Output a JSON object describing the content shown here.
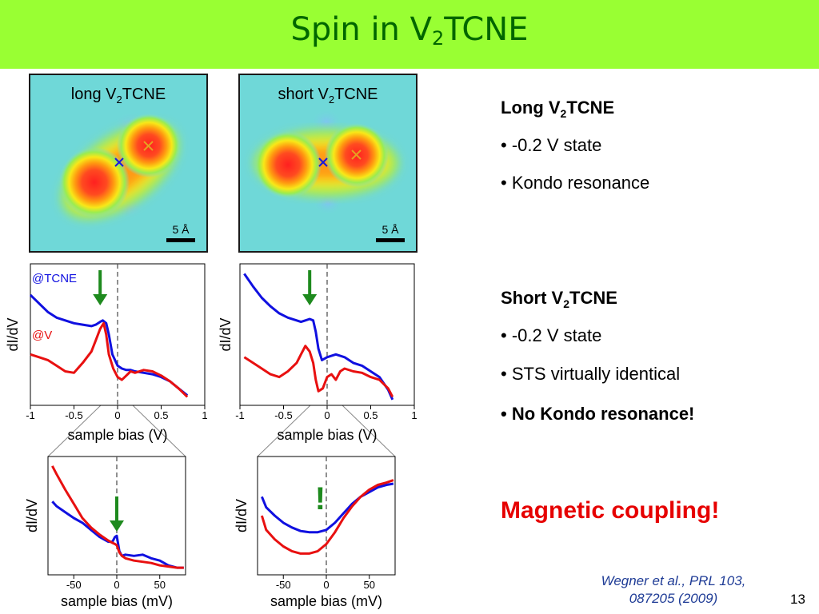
{
  "slide": {
    "title_prefix": "Spin in V",
    "title_sub": "2",
    "title_suffix": "TCNE",
    "page_number": "13"
  },
  "images": [
    {
      "title_prefix": "long V",
      "title_sub": "2",
      "title_suffix": "TCNE",
      "scale_label": "5 Å"
    },
    {
      "title_prefix": "short V",
      "title_sub": "2",
      "title_suffix": "TCNE",
      "scale_label": "5 Å"
    }
  ],
  "right_text": {
    "long": {
      "heading_prefix": "Long V",
      "heading_sub": "2",
      "heading_suffix": "TCNE",
      "bullets": [
        "• -0.2 V state",
        "• Kondo resonance"
      ]
    },
    "short": {
      "heading_prefix": "Short V",
      "heading_sub": "2",
      "heading_suffix": "TCNE",
      "bullets": [
        "• -0.2 V state",
        "• STS virtually identical",
        "• No Kondo resonance!"
      ]
    },
    "conclusion": "Magnetic coupling!",
    "reference_line1": "Wegner et al., PRL 103,",
    "reference_line2": "087205 (2009)"
  },
  "colors": {
    "title_bar": "#99ff33",
    "title_text": "#006600",
    "series_tcne": "#1010e0",
    "series_v": "#e81010",
    "arrow": "#1e8a1e",
    "conclusion": "#e60000",
    "reference": "#1f3c96"
  },
  "chart_data": [
    {
      "type": "line",
      "ylabel": "dI/dV",
      "xlabel": "sample bias (V)",
      "xlim": [
        -1,
        1
      ],
      "ylim": [
        0,
        1
      ],
      "xticks": [
        "-1",
        "-0.5",
        "0",
        "0.5",
        "1"
      ],
      "xtick_values": [
        -1,
        -0.5,
        0,
        0.5,
        1
      ],
      "series": [
        {
          "name": "@TCNE",
          "color": "#1010e0",
          "x": [
            -1,
            -0.9,
            -0.8,
            -0.7,
            -0.6,
            -0.5,
            -0.4,
            -0.3,
            -0.25,
            -0.2,
            -0.17,
            -0.13,
            -0.1,
            -0.06,
            0,
            0.05,
            0.1,
            0.15,
            0.2,
            0.3,
            0.4,
            0.5,
            0.6,
            0.7,
            0.8
          ],
          "y": [
            0.78,
            0.72,
            0.66,
            0.62,
            0.6,
            0.58,
            0.57,
            0.56,
            0.57,
            0.59,
            0.6,
            0.58,
            0.5,
            0.36,
            0.28,
            0.26,
            0.25,
            0.25,
            0.24,
            0.23,
            0.22,
            0.2,
            0.17,
            0.12,
            0.07
          ]
        },
        {
          "name": "@V",
          "color": "#e81010",
          "x": [
            -1,
            -0.9,
            -0.8,
            -0.7,
            -0.6,
            -0.5,
            -0.4,
            -0.3,
            -0.25,
            -0.2,
            -0.16,
            -0.13,
            -0.1,
            -0.05,
            0,
            0.05,
            0.1,
            0.15,
            0.2,
            0.3,
            0.4,
            0.5,
            0.6,
            0.7,
            0.8
          ],
          "y": [
            0.36,
            0.34,
            0.32,
            0.28,
            0.24,
            0.23,
            0.3,
            0.38,
            0.46,
            0.54,
            0.58,
            0.5,
            0.36,
            0.26,
            0.2,
            0.18,
            0.21,
            0.24,
            0.23,
            0.25,
            0.24,
            0.21,
            0.17,
            0.12,
            0.06
          ]
        }
      ],
      "annotations": [
        "@TCNE",
        "@V"
      ],
      "arrow_x": -0.2,
      "dashed_x": 0
    },
    {
      "type": "line",
      "ylabel": "dI/dV",
      "xlabel": "sample bias (V)",
      "xlim": [
        -1,
        1
      ],
      "ylim": [
        0,
        1
      ],
      "xticks": [
        "-1",
        "-0.5",
        "0",
        "0.5",
        "1"
      ],
      "xtick_values": [
        -1,
        -0.5,
        0,
        0.5,
        1
      ],
      "series": [
        {
          "name": "",
          "color": "#1010e0",
          "x": [
            -0.95,
            -0.85,
            -0.75,
            -0.65,
            -0.55,
            -0.45,
            -0.35,
            -0.3,
            -0.25,
            -0.2,
            -0.16,
            -0.13,
            -0.1,
            -0.06,
            0,
            0.05,
            0.1,
            0.15,
            0.2,
            0.3,
            0.4,
            0.5,
            0.6,
            0.7,
            0.75
          ],
          "y": [
            0.93,
            0.84,
            0.76,
            0.7,
            0.65,
            0.62,
            0.6,
            0.59,
            0.6,
            0.61,
            0.6,
            0.52,
            0.4,
            0.32,
            0.34,
            0.35,
            0.36,
            0.35,
            0.34,
            0.3,
            0.28,
            0.24,
            0.2,
            0.11,
            0.04
          ]
        },
        {
          "name": "",
          "color": "#e81010",
          "x": [
            -0.95,
            -0.85,
            -0.75,
            -0.65,
            -0.55,
            -0.45,
            -0.35,
            -0.3,
            -0.25,
            -0.2,
            -0.16,
            -0.13,
            -0.1,
            -0.05,
            0,
            0.05,
            0.1,
            0.15,
            0.2,
            0.3,
            0.4,
            0.5,
            0.6,
            0.7,
            0.75
          ],
          "y": [
            0.34,
            0.3,
            0.26,
            0.22,
            0.2,
            0.24,
            0.3,
            0.36,
            0.42,
            0.38,
            0.3,
            0.18,
            0.1,
            0.12,
            0.2,
            0.22,
            0.18,
            0.24,
            0.26,
            0.24,
            0.23,
            0.2,
            0.18,
            0.12,
            0.06
          ]
        }
      ],
      "arrow_x": -0.2,
      "dashed_x": 0
    },
    {
      "type": "line",
      "ylabel": "dI/dV",
      "xlabel": "sample bias (mV)",
      "xlim": [
        -80,
        80
      ],
      "ylim": [
        0,
        1
      ],
      "xticks": [
        "-50",
        "0",
        "50"
      ],
      "xtick_values": [
        -50,
        0,
        50
      ],
      "series": [
        {
          "name": "",
          "color": "#1010e0",
          "x": [
            -75,
            -70,
            -60,
            -50,
            -40,
            -30,
            -20,
            -10,
            -5,
            -2,
            0,
            3,
            6,
            10,
            20,
            30,
            40,
            50,
            60,
            70,
            78
          ],
          "y": [
            0.62,
            0.58,
            0.53,
            0.48,
            0.44,
            0.38,
            0.32,
            0.28,
            0.28,
            0.32,
            0.33,
            0.2,
            0.16,
            0.17,
            0.16,
            0.17,
            0.14,
            0.12,
            0.08,
            0.06,
            0.06
          ]
        },
        {
          "name": "",
          "color": "#e81010",
          "x": [
            -75,
            -70,
            -60,
            -50,
            -40,
            -30,
            -20,
            -10,
            -5,
            -2,
            0,
            3,
            6,
            10,
            20,
            30,
            40,
            50,
            60,
            70,
            78
          ],
          "y": [
            0.92,
            0.85,
            0.72,
            0.6,
            0.48,
            0.4,
            0.34,
            0.29,
            0.27,
            0.26,
            0.25,
            0.19,
            0.16,
            0.14,
            0.12,
            0.11,
            0.1,
            0.08,
            0.07,
            0.06,
            0.06
          ]
        }
      ],
      "arrow_x": 0,
      "dashed_x": 0
    },
    {
      "type": "line",
      "ylabel": "dI/dV",
      "xlabel": "sample bias (mV)",
      "xlim": [
        -80,
        80
      ],
      "ylim": [
        0,
        1
      ],
      "xticks": [
        "-50",
        "0",
        "50"
      ],
      "xtick_values": [
        -50,
        0,
        50
      ],
      "series": [
        {
          "name": "",
          "color": "#1010e0",
          "x": [
            -75,
            -70,
            -60,
            -50,
            -40,
            -30,
            -20,
            -10,
            0,
            10,
            20,
            30,
            40,
            50,
            60,
            70,
            78
          ],
          "y": [
            0.66,
            0.57,
            0.5,
            0.44,
            0.4,
            0.37,
            0.36,
            0.36,
            0.38,
            0.44,
            0.52,
            0.6,
            0.66,
            0.7,
            0.74,
            0.76,
            0.77
          ]
        },
        {
          "name": "",
          "color": "#e81010",
          "x": [
            -75,
            -70,
            -60,
            -50,
            -40,
            -30,
            -20,
            -10,
            0,
            10,
            20,
            30,
            40,
            50,
            60,
            70,
            78
          ],
          "y": [
            0.5,
            0.38,
            0.3,
            0.24,
            0.2,
            0.18,
            0.18,
            0.2,
            0.26,
            0.36,
            0.48,
            0.58,
            0.66,
            0.72,
            0.76,
            0.78,
            0.8
          ]
        }
      ],
      "marker": "!",
      "dashed_x": 0
    }
  ]
}
